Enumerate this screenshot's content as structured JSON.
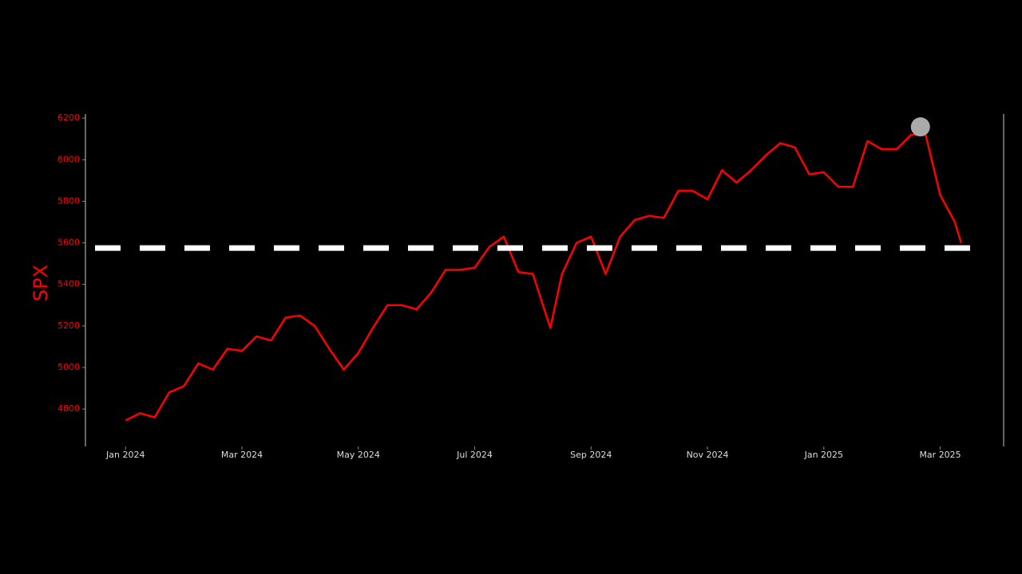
{
  "chart_data": {
    "type": "line",
    "title": null,
    "y_label": "SPX",
    "x": [
      0,
      0.25,
      0.5,
      0.75,
      1.0,
      1.25,
      1.5,
      1.75,
      2.0,
      2.25,
      2.5,
      2.75,
      3.0,
      3.25,
      3.5,
      3.75,
      4.0,
      4.25,
      4.5,
      4.75,
      5.0,
      5.25,
      5.5,
      5.75,
      6.0,
      6.25,
      6.5,
      6.75,
      7.0,
      7.3,
      7.5,
      7.75,
      8.0,
      8.25,
      8.5,
      8.75,
      9.0,
      9.25,
      9.5,
      9.75,
      10.0,
      10.25,
      10.5,
      10.75,
      11.0,
      11.25,
      11.5,
      11.75,
      12.0,
      12.25,
      12.5,
      12.75,
      13.0,
      13.25,
      13.5,
      13.75,
      14.0,
      14.25,
      14.36
    ],
    "series": [
      {
        "name": "SPX",
        "color": "#ff0000",
        "values": [
          4745,
          4780,
          4760,
          4880,
          4910,
          5020,
          4990,
          5090,
          5080,
          5150,
          5130,
          5240,
          5250,
          5200,
          5090,
          4990,
          5070,
          5190,
          5300,
          5300,
          5280,
          5360,
          5470,
          5470,
          5480,
          5580,
          5630,
          5460,
          5450,
          5190,
          5450,
          5600,
          5630,
          5450,
          5630,
          5710,
          5730,
          5720,
          5850,
          5850,
          5810,
          5950,
          5890,
          5950,
          6020,
          6080,
          6060,
          5930,
          5940,
          5870,
          5870,
          6090,
          6050,
          6050,
          6120,
          6120,
          5830,
          5700,
          5600
        ]
      }
    ],
    "reference_line": {
      "y": 5575,
      "color": "#ffffff"
    },
    "marker": {
      "x": 13.66,
      "y": 6158,
      "color": "#aaaaaa"
    },
    "xlim": [
      -0.69,
      15.09
    ],
    "ylim": [
      4620,
      6220
    ],
    "xticks": [
      {
        "value": 0,
        "label": "Jan 2024"
      },
      {
        "value": 2,
        "label": "Mar 2024"
      },
      {
        "value": 4,
        "label": "May 2024"
      },
      {
        "value": 6,
        "label": "Jul 2024"
      },
      {
        "value": 8,
        "label": "Sep 2024"
      },
      {
        "value": 10,
        "label": "Nov 2024"
      },
      {
        "value": 12,
        "label": "Jan 2025"
      },
      {
        "value": 14,
        "label": "Mar 2025"
      }
    ],
    "yticks": [
      4800,
      5000,
      5200,
      5400,
      5600,
      5800,
      6000,
      6200
    ],
    "grid": false
  }
}
